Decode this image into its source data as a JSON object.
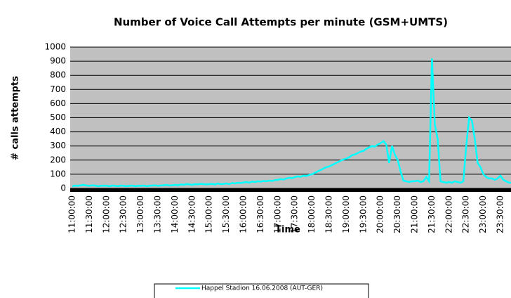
{
  "chart_data": {
    "type": "line",
    "title": "Number of Voice Call Attempts per minute (GSM+UMTS)",
    "y_label": "# calls attempts",
    "x_label": "Time",
    "categories": [
      "11:00:00",
      null,
      null,
      null,
      null,
      null,
      "11:30:00",
      null,
      null,
      null,
      null,
      null,
      "12:00:00",
      null,
      null,
      null,
      null,
      null,
      "12:30:00",
      null,
      null,
      null,
      null,
      null,
      "13:00:00",
      null,
      null,
      null,
      null,
      null,
      "13:30:00",
      null,
      null,
      null,
      null,
      null,
      "14:00:00",
      null,
      null,
      null,
      null,
      null,
      "14:30:00",
      null,
      null,
      null,
      null,
      null,
      "15:00:00",
      null,
      null,
      null,
      null,
      null,
      "15:30:00",
      null,
      null,
      null,
      null,
      null,
      "16:00:00",
      null,
      null,
      null,
      null,
      null,
      "16:30:00",
      null,
      null,
      null,
      null,
      null,
      "17:00:00",
      null,
      null,
      null,
      null,
      null,
      "17:30:00",
      null,
      null,
      null,
      null,
      null,
      "18:00:00",
      null,
      null,
      null,
      null,
      null,
      "18:30:00",
      null,
      null,
      null,
      null,
      null,
      "19:00:00",
      null,
      null,
      null,
      null,
      null,
      "19:30:00",
      null,
      null,
      null,
      null,
      null,
      "20:00:00",
      null,
      null,
      null,
      null,
      null,
      "20:30:00",
      null,
      null,
      null,
      null,
      null,
      "21:00:00",
      null,
      null,
      null,
      null,
      null,
      "21:30:00",
      null,
      null,
      null,
      null,
      null,
      "22:00:00",
      null,
      null,
      null,
      null,
      null,
      "22:30:00",
      null,
      null,
      null,
      null,
      null,
      "23:00:00",
      null,
      null,
      null,
      null,
      null,
      "23:30:00",
      null,
      null,
      null,
      null
    ],
    "series": [
      {
        "name": "Happel Stadion  16.06.2008  (AUT-GER)",
        "color": "#00ffff",
        "values": [
          15,
          20,
          18,
          22,
          25,
          20,
          18,
          22,
          20,
          15,
          18,
          20,
          18,
          15,
          20,
          18,
          15,
          20,
          18,
          15,
          18,
          20,
          15,
          18,
          18,
          20,
          15,
          18,
          20,
          22,
          18,
          20,
          22,
          25,
          20,
          22,
          25,
          22,
          28,
          25,
          30,
          28,
          25,
          30,
          28,
          32,
          30,
          28,
          30,
          32,
          28,
          35,
          30,
          32,
          35,
          30,
          38,
          35,
          40,
          38,
          42,
          45,
          40,
          48,
          45,
          50,
          48,
          52,
          50,
          55,
          52,
          58,
          60,
          65,
          62,
          70,
          75,
          72,
          80,
          85,
          82,
          90,
          88,
          95,
          100,
          110,
          120,
          130,
          140,
          150,
          155,
          165,
          175,
          185,
          195,
          205,
          210,
          220,
          235,
          240,
          250,
          260,
          265,
          280,
          290,
          300,
          295,
          310,
          320,
          335,
          310,
          180,
          300,
          240,
          200,
          120,
          55,
          50,
          45,
          50,
          50,
          55,
          45,
          50,
          80,
          50,
          920,
          450,
          350,
          50,
          45,
          40,
          45,
          40,
          50,
          45,
          40,
          50,
          300,
          500,
          480,
          350,
          180,
          150,
          100,
          80,
          70,
          70,
          60,
          70,
          90,
          60,
          50,
          40,
          40
        ]
      }
    ],
    "ylim": [
      0,
      1000
    ],
    "yticks": [
      0,
      100,
      200,
      300,
      400,
      500,
      600,
      700,
      800,
      900,
      1000
    ],
    "grid": true,
    "legend": "bottom"
  }
}
